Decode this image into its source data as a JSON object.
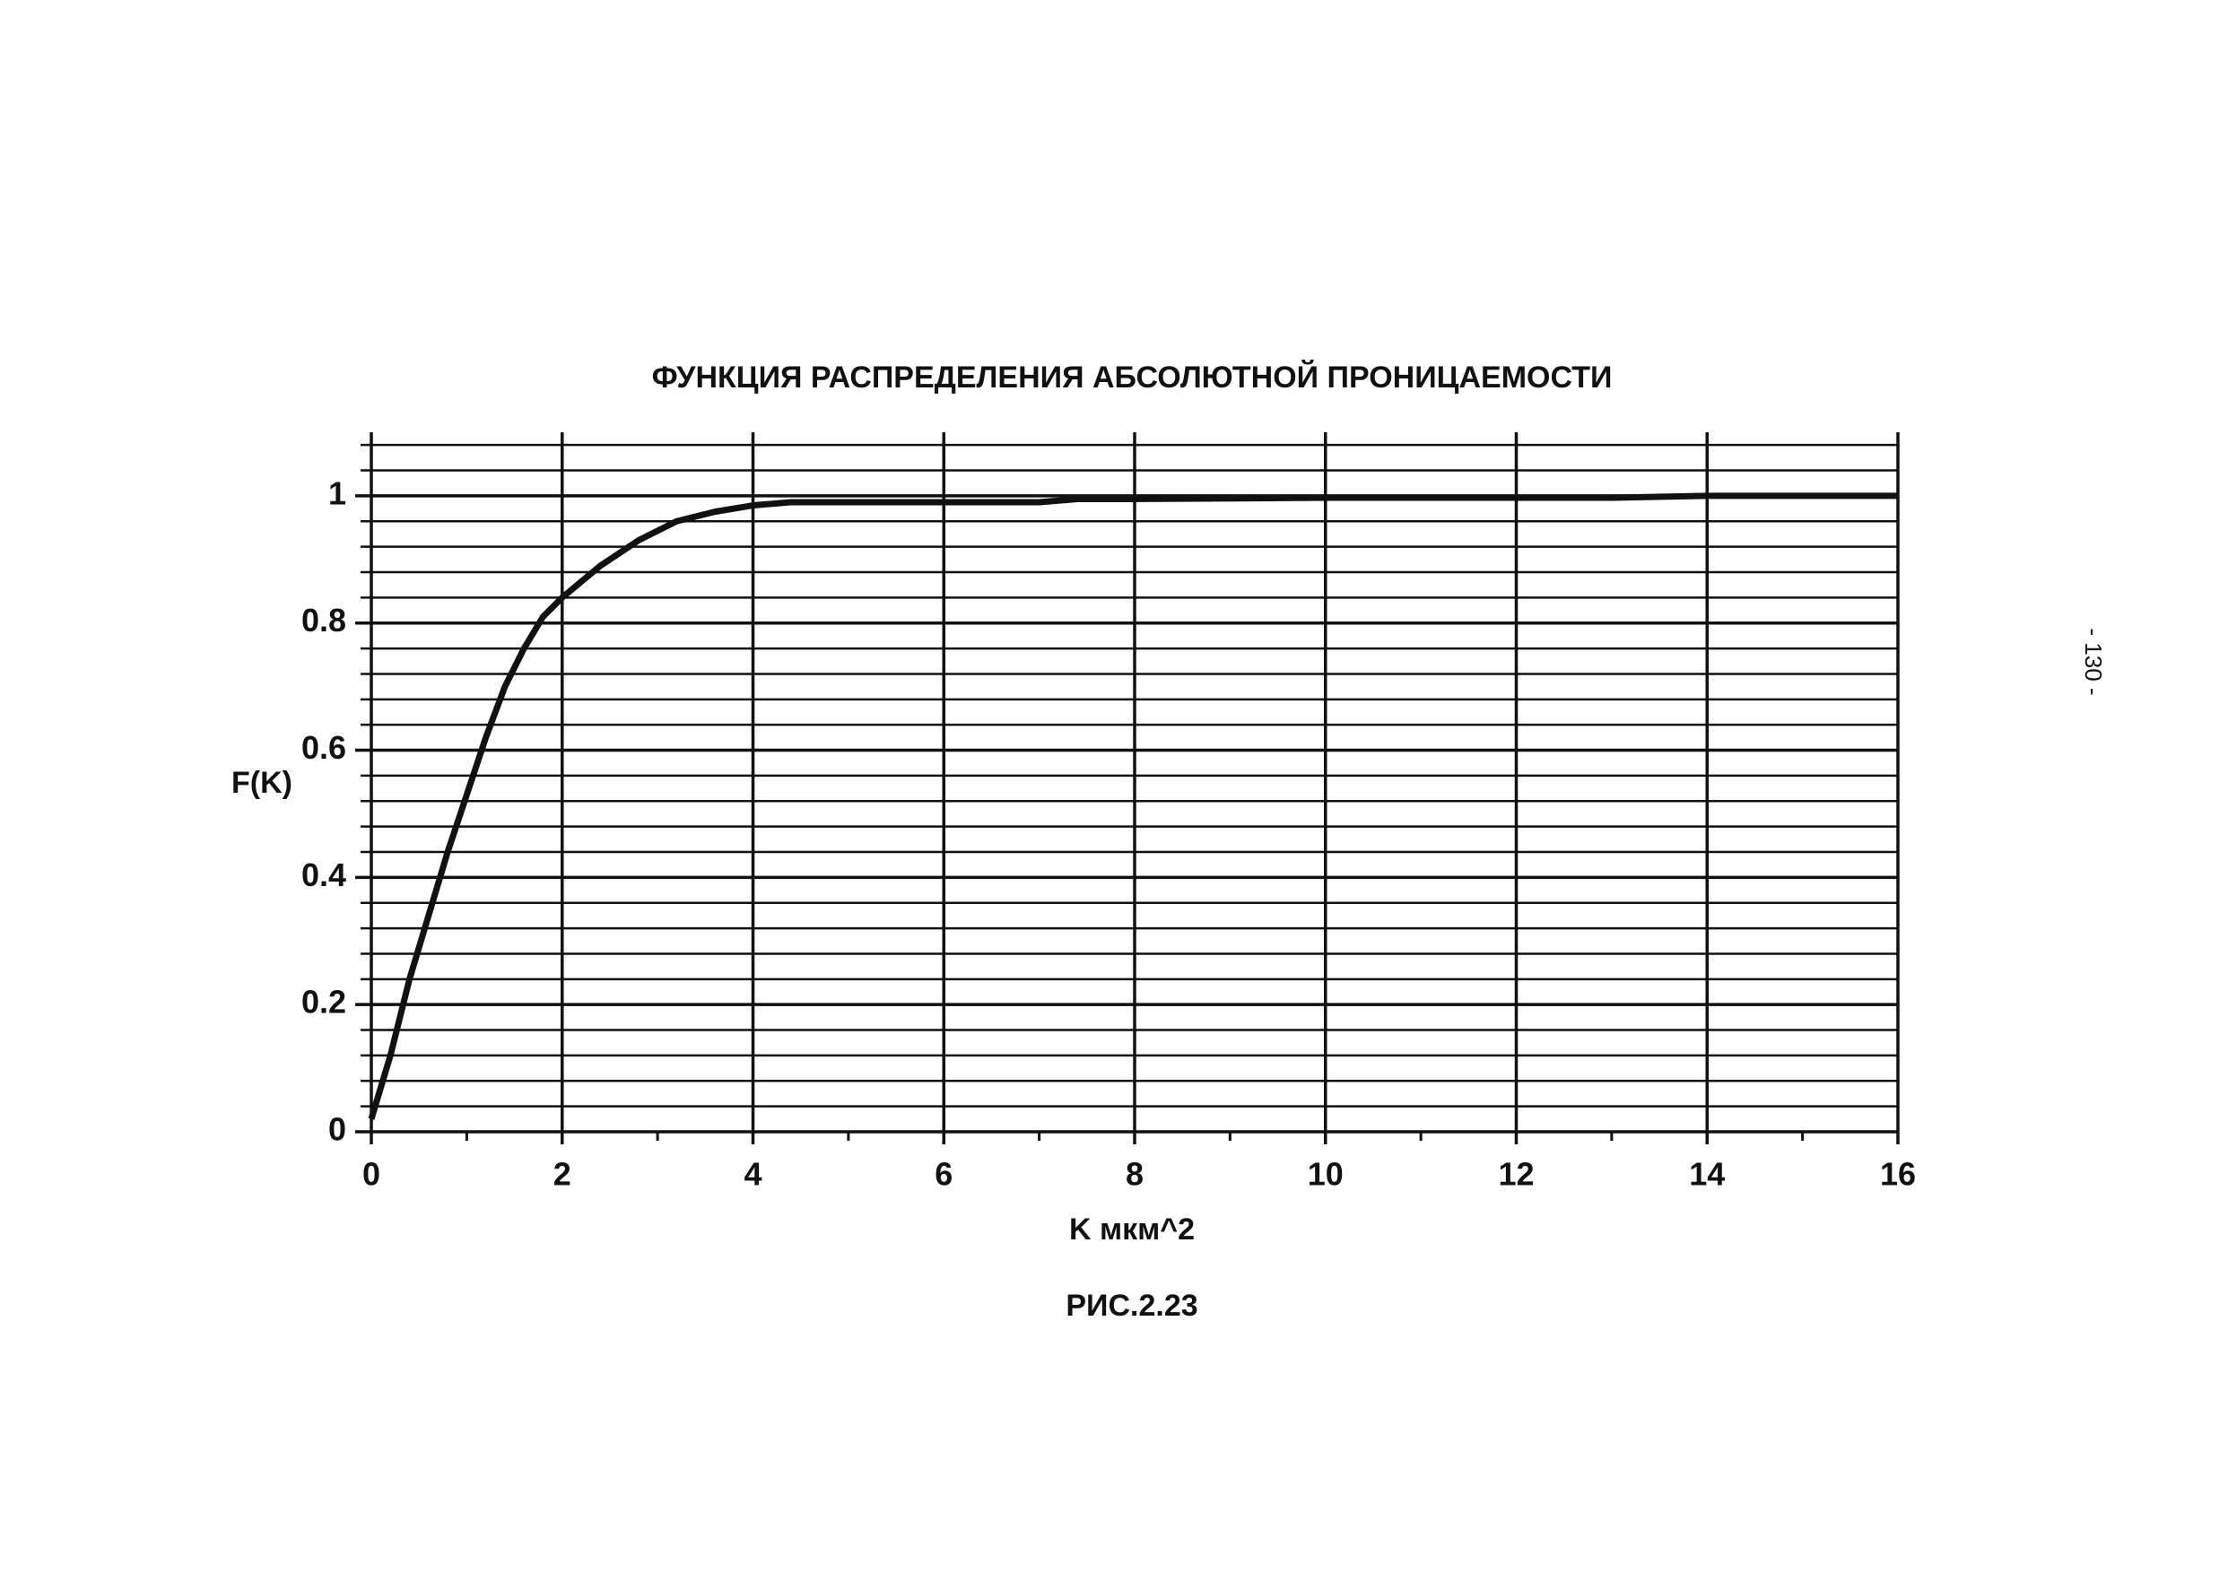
{
  "chart_data": {
    "type": "line",
    "title": "ФУНКЦИЯ РАСПРЕДЕЛЕНИЯ АБСОЛЮТНОЙ ПРОНИЦАЕМОСТИ",
    "x_label": "K мкм^2",
    "y_label": "F(K)",
    "caption": "РИС.2.23",
    "page_number": "- 130 -",
    "x": [
      0,
      0.2,
      0.4,
      0.6,
      0.8,
      1,
      1.2,
      1.4,
      1.6,
      1.8,
      2,
      2.4,
      2.8,
      3.2,
      3.6,
      4,
      4.4,
      5,
      6,
      7,
      7.4,
      8,
      10,
      12,
      13,
      14,
      16
    ],
    "series": [
      {
        "color": "#111111",
        "values": [
          0.02,
          0.12,
          0.24,
          0.34,
          0.44,
          0.53,
          0.62,
          0.7,
          0.76,
          0.81,
          0.84,
          0.89,
          0.93,
          0.96,
          0.975,
          0.985,
          0.99,
          0.99,
          0.99,
          0.99,
          0.995,
          0.995,
          0.997,
          0.997,
          0.997,
          1,
          1
        ]
      }
    ],
    "xlim": [
      0,
      16
    ],
    "ylim": [
      0,
      1.1
    ],
    "xticks": [
      0,
      2,
      4,
      6,
      8,
      10,
      12,
      14,
      16
    ],
    "minor_xticks": [
      1,
      3,
      5,
      7,
      9,
      11,
      13,
      15
    ],
    "yticks": [
      0,
      0.2,
      0.4,
      0.6,
      0.8,
      1
    ],
    "minor_yticks": [
      0.04,
      0.08,
      0.12,
      0.16,
      0.24,
      0.28,
      0.32,
      0.36,
      0.44,
      0.48,
      0.52,
      0.56,
      0.64,
      0.68,
      0.72,
      0.76,
      0.84,
      0.88,
      0.92,
      0.96,
      1.04,
      1.08
    ],
    "grid": true
  }
}
